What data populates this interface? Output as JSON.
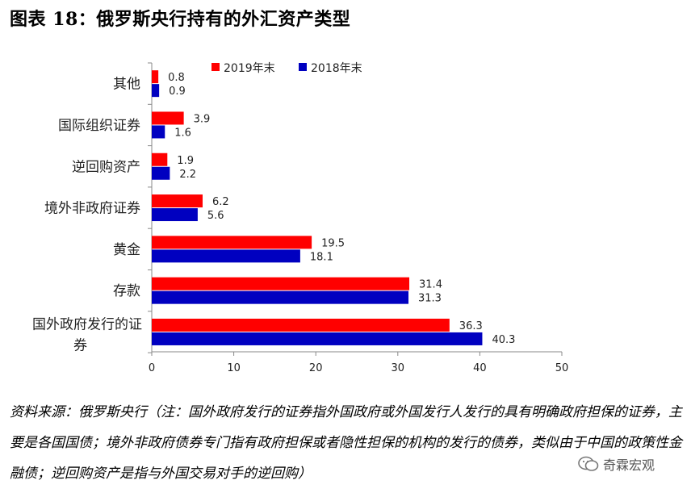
{
  "figure_title": "图表 18：俄罗斯央行持有的外汇资产类型",
  "source_note": "资料来源：俄罗斯央行（注：国外政府发行的证券指外国政府或外国发行人发行的具有明确政府担保的证券，主要是各国国债；境外非政府债券专门指有政府担保或者隐性担保的机构的发行的债券，类似由于中国的政策性金融债；逆回购资产是指与外国交易对手的逆回购）",
  "watermark": "奇霖宏观",
  "chart_data": {
    "type": "bar",
    "orientation": "horizontal",
    "categories": [
      "其他",
      "国际组织证券",
      "逆回购资产",
      "境外非政府证券",
      "黄金",
      "存款",
      "国外政府发行的证券"
    ],
    "series": [
      {
        "name": "2019年末",
        "color": "#FF0000",
        "values": [
          0.8,
          3.9,
          1.9,
          6.2,
          19.5,
          31.4,
          36.3
        ]
      },
      {
        "name": "2018年末",
        "color": "#0000C0",
        "values": [
          0.9,
          1.6,
          2.2,
          5.6,
          18.1,
          31.3,
          40.3
        ]
      }
    ],
    "xlim": [
      0,
      50
    ],
    "xticks": [
      "0",
      "10",
      "20",
      "30",
      "40",
      "50"
    ],
    "legend_position": "top",
    "grid": false
  }
}
